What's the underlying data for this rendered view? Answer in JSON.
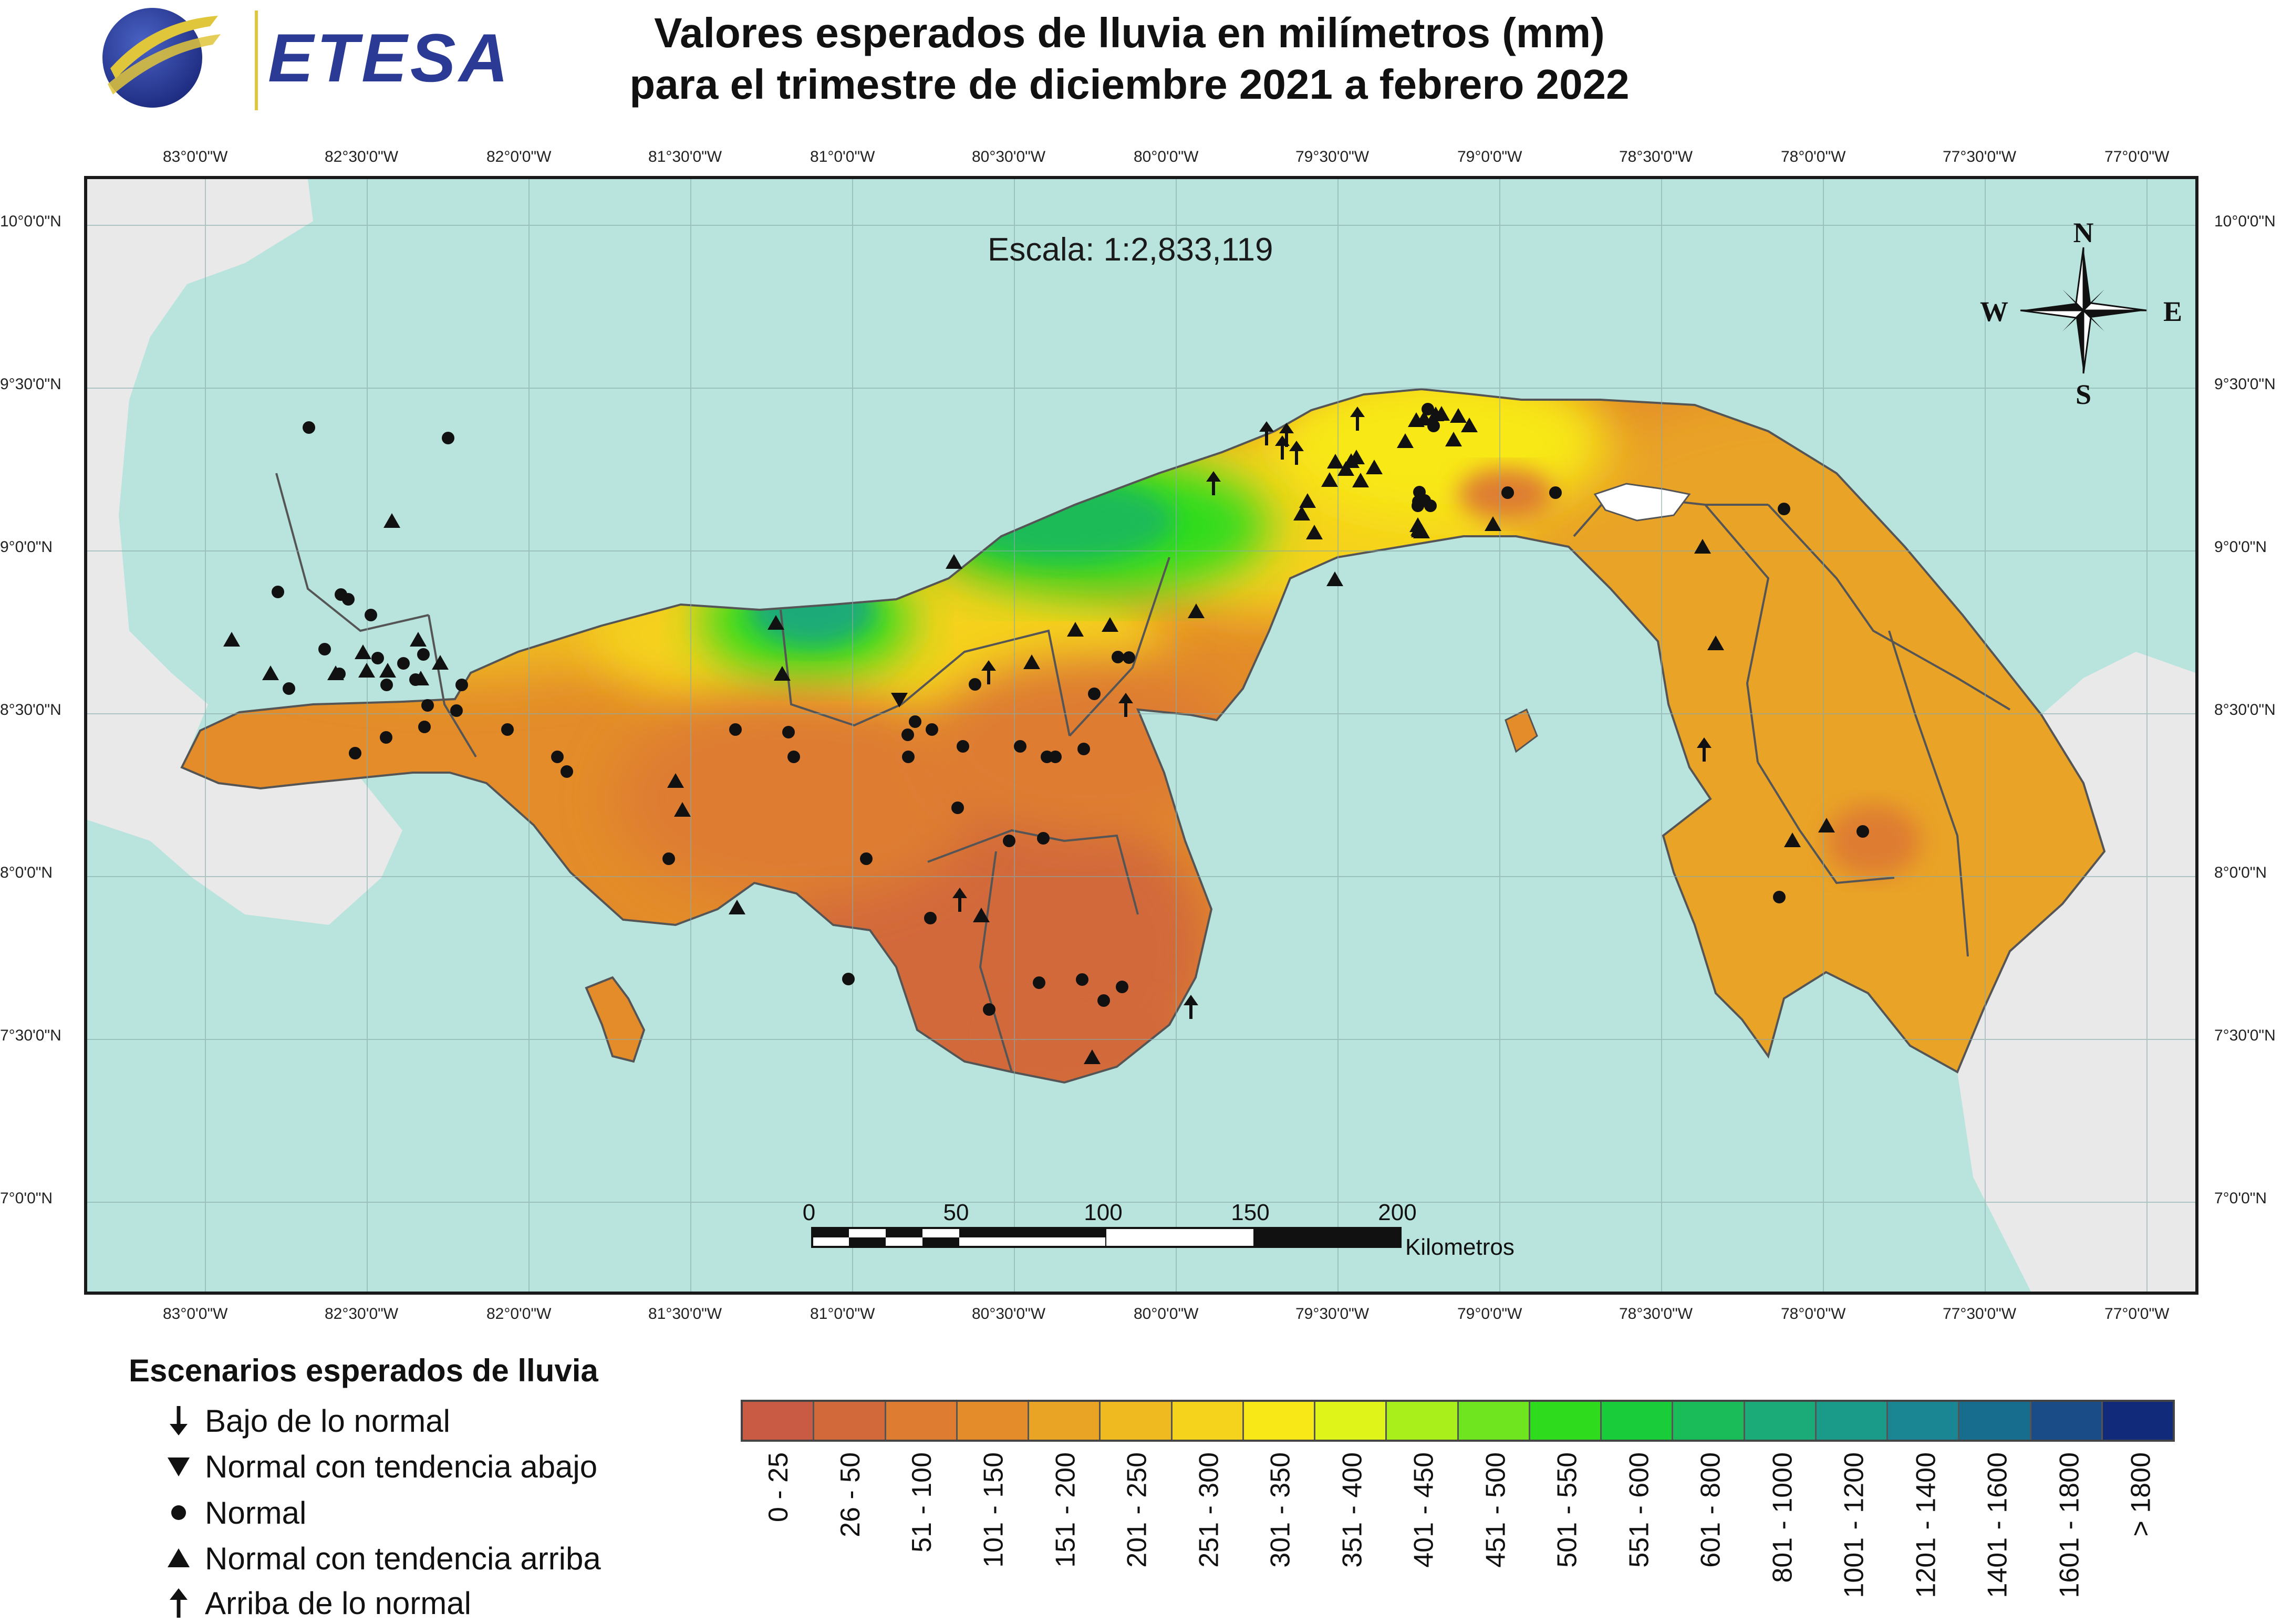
{
  "header": {
    "logo_text": "ETESA",
    "title_line_1": "Valores esperados de lluvia en milímetros (mm)",
    "title_line_2": "para el trimestre de diciembre 2021 a febrero 2022"
  },
  "map": {
    "scale_text": "Escala: 1:2,833,119",
    "longitude_ticks": [
      "83°0'0\"W",
      "82°30'0\"W",
      "82°0'0\"W",
      "81°30'0\"W",
      "81°0'0\"W",
      "80°30'0\"W",
      "80°0'0\"W",
      "79°30'0\"W",
      "79°0'0\"W",
      "78°30'0\"W",
      "78°0'0\"W",
      "77°30'0\"W",
      "77°0'0\"W"
    ],
    "latitude_ticks": [
      "10°0'0\"N",
      "9°30'0\"N",
      "9°0'0\"N",
      "8°30'0\"N",
      "8°0'0\"N",
      "7°30'0\"N",
      "7°0'0\"N"
    ],
    "compass": {
      "north": "N",
      "south": "S",
      "east": "E",
      "west": "W"
    },
    "scalebar": {
      "labels": [
        "0",
        "50",
        "100",
        "150",
        "200"
      ],
      "unit": "Kilometros"
    }
  },
  "legend": {
    "title": "Escenarios esperados de lluvia",
    "items": [
      {
        "symbol": "arrow-down-icon",
        "label": "Bajo de lo normal"
      },
      {
        "symbol": "triangle-down-icon",
        "label": "Normal con tendencia abajo"
      },
      {
        "symbol": "circle-icon",
        "label": "Normal"
      },
      {
        "symbol": "triangle-up-icon",
        "label": "Normal con tendencia arriba"
      },
      {
        "symbol": "arrow-up-icon",
        "label": "Arriba de lo normal"
      }
    ]
  },
  "colorbar": {
    "classes": [
      {
        "label": "0 - 25",
        "color": "#c95a44"
      },
      {
        "label": "26 - 50",
        "color": "#d2693a"
      },
      {
        "label": "51 - 100",
        "color": "#de7d32"
      },
      {
        "label": "101 - 150",
        "color": "#e38c29"
      },
      {
        "label": "151 - 200",
        "color": "#e9a325"
      },
      {
        "label": "201 - 250",
        "color": "#efba20"
      },
      {
        "label": "251 - 300",
        "color": "#f5d21c"
      },
      {
        "label": "301 - 350",
        "color": "#f8e817"
      },
      {
        "label": "351 - 400",
        "color": "#dff51a"
      },
      {
        "label": "401 - 450",
        "color": "#a8ef1c"
      },
      {
        "label": "451 - 500",
        "color": "#6fe520"
      },
      {
        "label": "501 - 550",
        "color": "#2fdc1d"
      },
      {
        "label": "551 - 600",
        "color": "#19cc3a"
      },
      {
        "label": "601 - 800",
        "color": "#1abb59"
      },
      {
        "label": "801 - 1000",
        "color": "#1aab78"
      },
      {
        "label": "1001 - 1200",
        "color": "#1a9b8a"
      },
      {
        "label": "1201 - 1400",
        "color": "#1a8694"
      },
      {
        "label": "1401 - 1600",
        "color": "#176d8d"
      },
      {
        "label": "1601 - 1800",
        "color": "#1a4d88"
      },
      {
        "label": "> 1800",
        "color": "#112a7a"
      }
    ]
  },
  "colors": {
    "sea": "#b9e4dd",
    "neighbor_land": "#e8e8e8",
    "border": "#555555",
    "logo_blue": "#2b3a94",
    "logo_gold": "#e0c63a"
  }
}
